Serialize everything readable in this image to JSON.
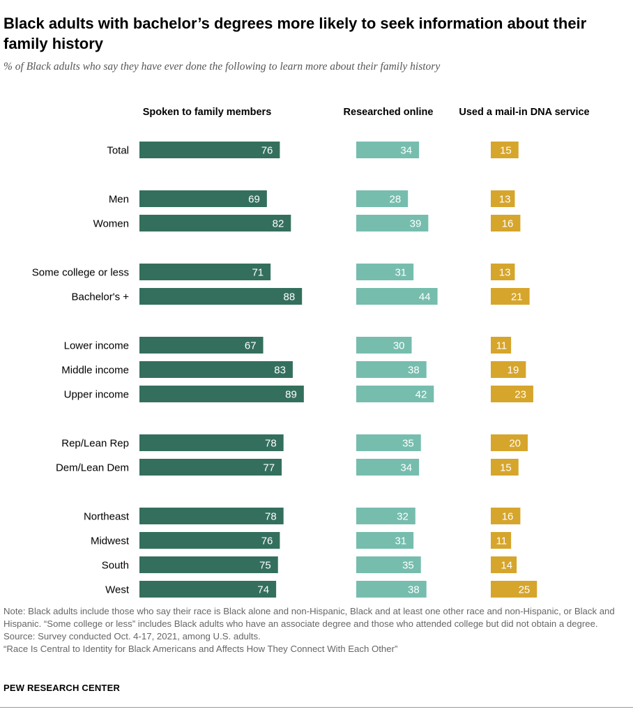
{
  "header": {
    "title": "Black adults with bachelor’s degrees more likely to seek information about their family history",
    "subtitle": "% of Black adults who say they have ever done the following to learn more about their family history"
  },
  "colors": {
    "spoken": "#346f5e",
    "online": "#76bdae",
    "dna": "#d6a52c"
  },
  "chart_data": {
    "type": "bar",
    "orientation": "horizontal",
    "categories": [
      "Total",
      "Men",
      "Women",
      "Some college or less",
      "Bachelor's +",
      "Lower income",
      "Middle income",
      "Upper income",
      "Rep/Lean Rep",
      "Dem/Lean Dem",
      "Northeast",
      "Midwest",
      "South",
      "West"
    ],
    "groups": [
      [
        0
      ],
      [
        1,
        2
      ],
      [
        3,
        4
      ],
      [
        5,
        6,
        7
      ],
      [
        8,
        9
      ],
      [
        10,
        11,
        12,
        13
      ]
    ],
    "series": [
      {
        "name": "Spoken to family members",
        "values": [
          76,
          69,
          82,
          71,
          88,
          67,
          83,
          89,
          78,
          77,
          78,
          76,
          75,
          74
        ]
      },
      {
        "name": "Researched online",
        "values": [
          34,
          28,
          39,
          31,
          44,
          30,
          38,
          42,
          35,
          34,
          32,
          31,
          35,
          38
        ]
      },
      {
        "name": "Used a mail-in DNA service",
        "values": [
          15,
          13,
          16,
          13,
          21,
          11,
          19,
          23,
          20,
          15,
          16,
          11,
          14,
          25
        ]
      }
    ]
  },
  "footer": {
    "note": "Note: Black adults include those who say their race is Black alone and non-Hispanic, Black and at least one other race and non-Hispanic, or Black and Hispanic. “Some college or less” includes Black adults who have an associate degree and those who attended college but did not obtain a degree.",
    "source": "Source: Survey conducted Oct. 4-17, 2021, among U.S. adults.",
    "report": "“Race Is Central to Identity for Black Americans and Affects How They Connect With Each Other”",
    "brand": "PEW RESEARCH CENTER"
  }
}
